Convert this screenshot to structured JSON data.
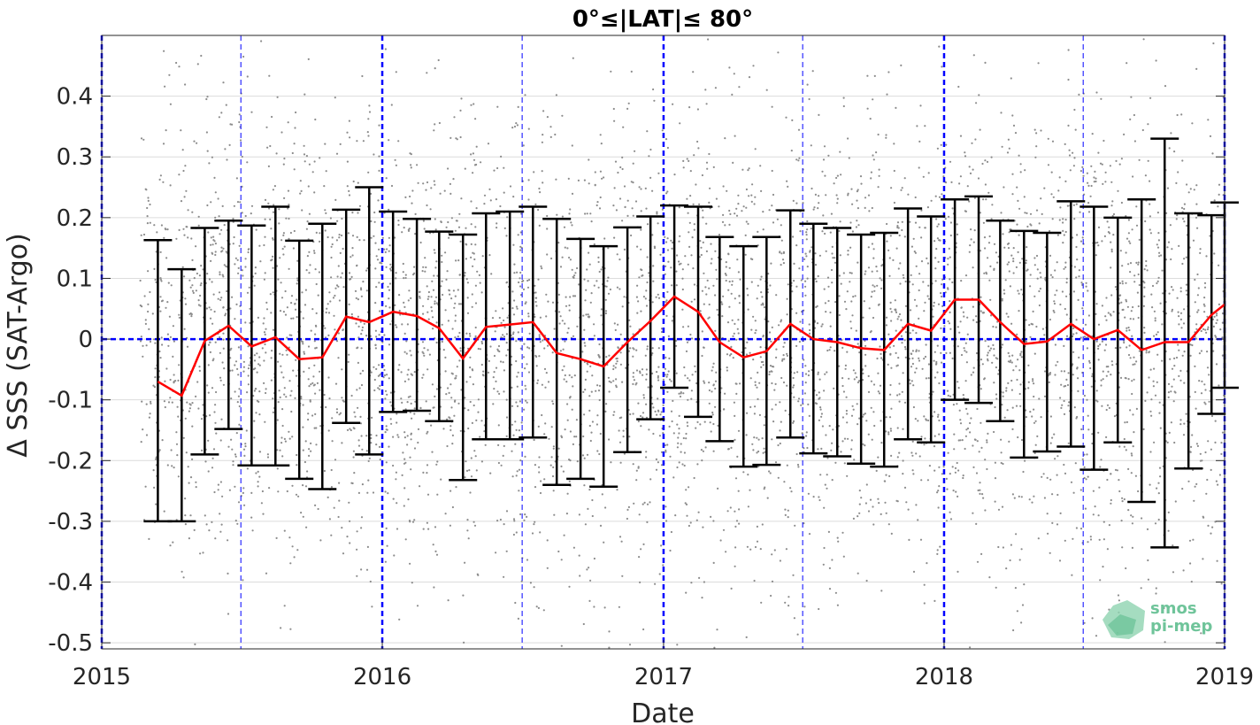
{
  "chart_data": {
    "type": "scatter",
    "title": "0°≤|LAT|≤ 80°",
    "xlabel": "Date",
    "ylabel": "Δ SSS (SAT-Argo)",
    "xlim": [
      "2015-01-01",
      "2019-01-01"
    ],
    "ylim": [
      -0.51,
      0.5
    ],
    "xticks": [
      "2015",
      "2016",
      "2017",
      "2018",
      "2019"
    ],
    "yticks": [
      -0.5,
      -0.4,
      -0.3,
      -0.2,
      -0.1,
      0,
      0.1,
      0.2,
      0.3,
      0.4
    ],
    "ytick_labels": [
      "-0.5",
      "-0.4",
      "-0.3",
      "-0.2",
      "-0.1",
      "0",
      "0.1",
      "0.2",
      "0.3",
      "0.4"
    ],
    "grid": true,
    "colors": {
      "scatter": "#8c8c8c",
      "mean_line": "#ff0000",
      "errorbar": "#000000",
      "reference_lines": "#0000ff"
    },
    "year_lines": [
      "2015-01-01",
      "2016-01-01",
      "2017-01-01",
      "2018-01-01",
      "2019-01-01"
    ],
    "half_year_lines": [
      "2015-07-01",
      "2016-07-01",
      "2017-07-01",
      "2018-07-01"
    ],
    "zero_line": 0,
    "scatter_note": "dense cloud of individual SAT-Argo differences, roughly centered on 0 and spanning the full y-range",
    "series": [
      {
        "type": "line",
        "x": [
          "2015-03-15",
          "2015-04-15",
          "2015-05-15",
          "2015-06-15",
          "2015-07-15",
          "2015-08-15",
          "2015-09-15",
          "2015-10-15",
          "2015-11-15",
          "2015-12-15",
          "2016-01-15",
          "2016-02-15",
          "2016-03-15",
          "2016-04-15",
          "2016-05-15",
          "2016-06-15",
          "2016-07-15",
          "2016-08-15",
          "2016-09-15",
          "2016-10-15",
          "2016-11-15",
          "2016-12-15",
          "2017-01-15",
          "2017-02-15",
          "2017-03-15",
          "2017-04-15",
          "2017-05-15",
          "2017-06-15",
          "2017-07-15",
          "2017-08-15",
          "2017-09-15",
          "2017-10-15",
          "2017-11-15",
          "2017-12-15",
          "2018-01-15",
          "2018-02-15",
          "2018-03-15",
          "2018-04-15",
          "2018-05-15",
          "2018-06-15",
          "2018-07-15",
          "2018-08-15",
          "2018-09-15",
          "2018-10-15",
          "2018-11-15",
          "2018-12-15",
          "2019-01-01"
        ],
        "y": [
          -0.07,
          -0.093,
          -0.003,
          0.022,
          -0.012,
          0.003,
          -0.033,
          -0.03,
          0.037,
          0.028,
          0.045,
          0.038,
          0.018,
          -0.032,
          0.02,
          0.024,
          0.028,
          -0.023,
          -0.033,
          -0.045,
          -0.005,
          0.03,
          0.07,
          0.045,
          -0.005,
          -0.03,
          -0.02,
          0.025,
          0.0,
          -0.005,
          -0.015,
          -0.018,
          0.025,
          0.014,
          0.065,
          0.065,
          0.028,
          -0.008,
          -0.004,
          0.025,
          0.0,
          0.015,
          -0.018,
          -0.005,
          -0.005,
          0.04,
          0.057
        ],
        "lower": [
          -0.3,
          -0.3,
          -0.19,
          -0.148,
          -0.208,
          -0.208,
          -0.23,
          -0.247,
          -0.138,
          -0.19,
          -0.12,
          -0.118,
          -0.135,
          -0.232,
          -0.165,
          -0.165,
          -0.162,
          -0.24,
          -0.23,
          -0.243,
          -0.186,
          -0.132,
          -0.08,
          -0.128,
          -0.168,
          -0.21,
          -0.207,
          -0.162,
          -0.188,
          -0.193,
          -0.205,
          -0.21,
          -0.165,
          -0.17,
          -0.1,
          -0.105,
          -0.135,
          -0.195,
          -0.185,
          -0.177,
          -0.215,
          -0.17,
          -0.268,
          -0.343,
          -0.213,
          -0.123,
          -0.08
        ],
        "upper": [
          0.163,
          0.115,
          0.183,
          0.195,
          0.187,
          0.218,
          0.162,
          0.19,
          0.213,
          0.25,
          0.21,
          0.198,
          0.177,
          0.172,
          0.207,
          0.21,
          0.218,
          0.198,
          0.165,
          0.153,
          0.184,
          0.202,
          0.22,
          0.218,
          0.168,
          0.153,
          0.168,
          0.212,
          0.19,
          0.183,
          0.172,
          0.175,
          0.215,
          0.202,
          0.23,
          0.235,
          0.195,
          0.178,
          0.175,
          0.227,
          0.218,
          0.2,
          0.23,
          0.33,
          0.207,
          0.204,
          0.225
        ]
      }
    ]
  },
  "logo": {
    "line1": "smos",
    "line2": "pi-mep"
  }
}
